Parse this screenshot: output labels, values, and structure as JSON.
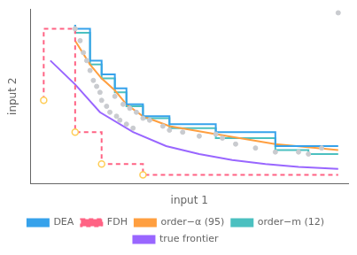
{
  "chart_data": {
    "type": "line",
    "xlabel": "input 1",
    "ylabel": "input 2",
    "xlim": [
      0.04,
      1.0
    ],
    "ylim": [
      0.1,
      0.98
    ],
    "grid": false,
    "tick_labels": false,
    "legend": "bottom",
    "series": [
      {
        "name": "DEA",
        "x": [
          0.175,
          0.175,
          0.22,
          0.22,
          0.255,
          0.255,
          0.295,
          0.295,
          0.33,
          0.33,
          0.38,
          0.38,
          0.46,
          0.46,
          0.6,
          0.6,
          0.78,
          0.78,
          0.97
        ],
        "values": [
          0.9,
          0.88,
          0.88,
          0.72,
          0.72,
          0.65,
          0.65,
          0.58,
          0.58,
          0.5,
          0.5,
          0.44,
          0.44,
          0.4,
          0.4,
          0.36,
          0.36,
          0.29,
          0.29
        ]
      },
      {
        "name": "FDH",
        "line_style": "dashed",
        "x": [
          0.08,
          0.08,
          0.175,
          0.175,
          0.255,
          0.255,
          0.38,
          0.38,
          0.97
        ],
        "values": [
          0.52,
          0.88,
          0.88,
          0.36,
          0.36,
          0.2,
          0.2,
          0.145,
          0.145
        ]
      },
      {
        "name": "order−α (95)",
        "x": [
          0.175,
          0.22,
          0.255,
          0.295,
          0.33,
          0.38,
          0.46,
          0.6,
          0.78,
          0.97
        ],
        "values": [
          0.82,
          0.7,
          0.63,
          0.57,
          0.5,
          0.44,
          0.39,
          0.35,
          0.3,
          0.27
        ]
      },
      {
        "name": "order−m (12)",
        "x": [
          0.175,
          0.175,
          0.22,
          0.22,
          0.255,
          0.255,
          0.295,
          0.295,
          0.33,
          0.33,
          0.38,
          0.38,
          0.46,
          0.46,
          0.6,
          0.6,
          0.78,
          0.78,
          0.88,
          0.88,
          0.97
        ],
        "values": [
          0.9,
          0.86,
          0.86,
          0.7,
          0.7,
          0.63,
          0.63,
          0.56,
          0.56,
          0.49,
          0.49,
          0.43,
          0.43,
          0.38,
          0.38,
          0.33,
          0.33,
          0.27,
          0.27,
          0.25,
          0.25
        ]
      },
      {
        "name": "true frontier",
        "x": [
          0.1,
          0.175,
          0.25,
          0.35,
          0.45,
          0.55,
          0.65,
          0.75,
          0.85,
          0.97
        ],
        "values": [
          0.72,
          0.6,
          0.46,
          0.36,
          0.29,
          0.25,
          0.22,
          0.2,
          0.185,
          0.175
        ]
      },
      {
        "type": "scatter",
        "marker": "circle_open",
        "x": [
          0.08,
          0.175,
          0.255,
          0.38
        ],
        "values": [
          0.52,
          0.36,
          0.2,
          0.145
        ]
      },
      {
        "type": "scatter",
        "marker": "circle",
        "x": [
          0.175,
          0.19,
          0.2,
          0.21,
          0.22,
          0.23,
          0.24,
          0.25,
          0.255,
          0.27,
          0.28,
          0.3,
          0.31,
          0.33,
          0.35,
          0.295,
          0.34,
          0.38,
          0.32,
          0.36,
          0.4,
          0.44,
          0.46,
          0.5,
          0.55,
          0.6,
          0.62,
          0.66,
          0.72,
          0.78,
          0.85,
          0.88,
          0.92,
          0.97
        ],
        "values": [
          0.88,
          0.82,
          0.76,
          0.72,
          0.67,
          0.62,
          0.59,
          0.56,
          0.52,
          0.49,
          0.46,
          0.44,
          0.42,
          0.4,
          0.38,
          0.54,
          0.48,
          0.43,
          0.5,
          0.46,
          0.42,
          0.39,
          0.37,
          0.36,
          0.34,
          0.35,
          0.33,
          0.3,
          0.28,
          0.26,
          0.26,
          0.25,
          0.28,
          0.96
        ]
      }
    ]
  }
}
